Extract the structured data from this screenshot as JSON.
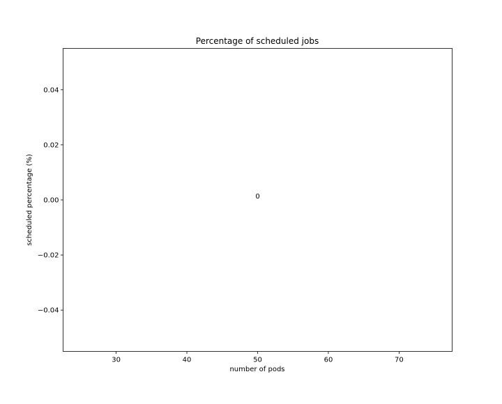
{
  "chart_data": {
    "type": "bar",
    "title": "Percentage of scheduled jobs",
    "xlabel": "number of pods",
    "ylabel": "scheduled percentage (%)",
    "x": [
      50
    ],
    "values": [
      0
    ],
    "data_labels": [
      "0"
    ],
    "xlim": [
      22.5,
      77.5
    ],
    "ylim": [
      -0.055,
      0.055
    ],
    "xticks": [
      30,
      40,
      50,
      60,
      70
    ],
    "xtick_labels": [
      "30",
      "40",
      "50",
      "60",
      "70"
    ],
    "yticks": [
      0.04,
      0.02,
      0.0,
      -0.02,
      -0.04
    ],
    "ytick_labels": [
      "0.04",
      "0.02",
      "0.00",
      "−0.02",
      "−0.04"
    ],
    "grid": false,
    "legend": "none"
  }
}
